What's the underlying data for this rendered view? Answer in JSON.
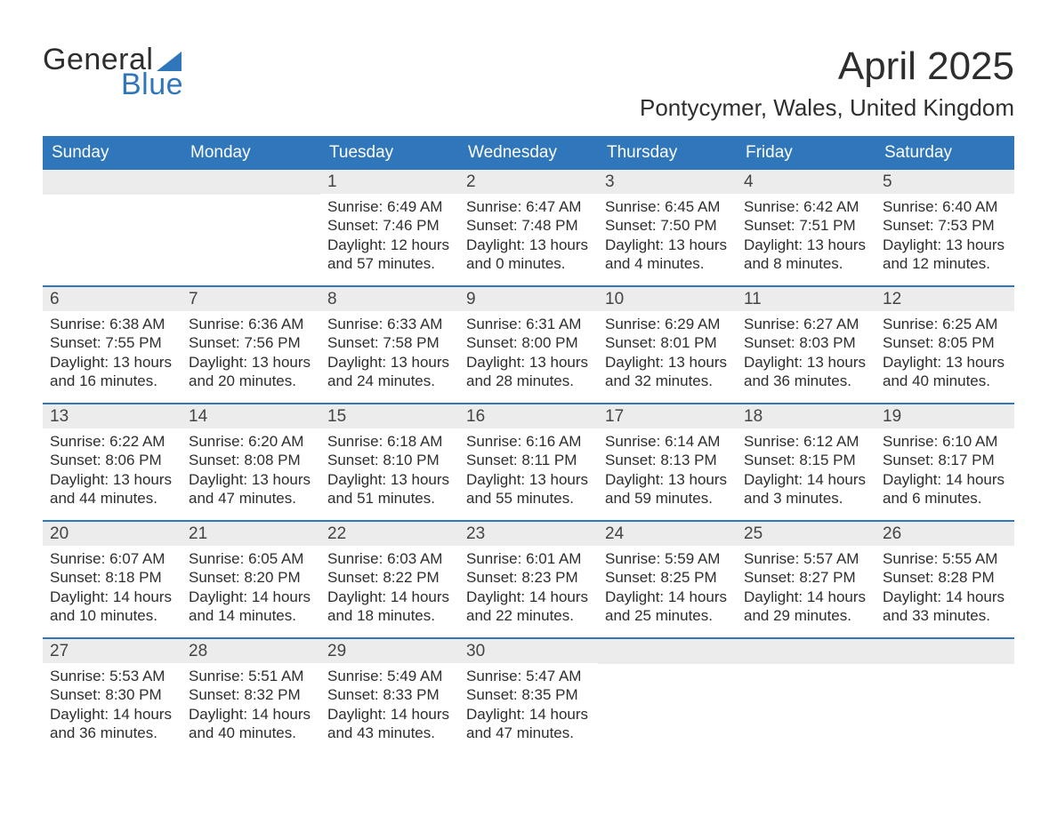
{
  "logo": {
    "text1": "General",
    "text2": "Blue"
  },
  "title": "April 2025",
  "location": "Pontycymer, Wales, United Kingdom",
  "colors": {
    "header_bg": "#2f76bb",
    "header_text": "#ffffff",
    "daynum_bg": "#ececec",
    "week_border": "#2f76bb",
    "body_text": "#2e2e2e",
    "logo_blue": "#2f76bb",
    "page_bg": "#ffffff"
  },
  "day_labels": [
    "Sunday",
    "Monday",
    "Tuesday",
    "Wednesday",
    "Thursday",
    "Friday",
    "Saturday"
  ],
  "weeks": [
    [
      {
        "n": "",
        "sunrise": "",
        "sunset": "",
        "daylight": ""
      },
      {
        "n": "",
        "sunrise": "",
        "sunset": "",
        "daylight": ""
      },
      {
        "n": "1",
        "sunrise": "6:49 AM",
        "sunset": "7:46 PM",
        "daylight": "12 hours and 57 minutes."
      },
      {
        "n": "2",
        "sunrise": "6:47 AM",
        "sunset": "7:48 PM",
        "daylight": "13 hours and 0 minutes."
      },
      {
        "n": "3",
        "sunrise": "6:45 AM",
        "sunset": "7:50 PM",
        "daylight": "13 hours and 4 minutes."
      },
      {
        "n": "4",
        "sunrise": "6:42 AM",
        "sunset": "7:51 PM",
        "daylight": "13 hours and 8 minutes."
      },
      {
        "n": "5",
        "sunrise": "6:40 AM",
        "sunset": "7:53 PM",
        "daylight": "13 hours and 12 minutes."
      }
    ],
    [
      {
        "n": "6",
        "sunrise": "6:38 AM",
        "sunset": "7:55 PM",
        "daylight": "13 hours and 16 minutes."
      },
      {
        "n": "7",
        "sunrise": "6:36 AM",
        "sunset": "7:56 PM",
        "daylight": "13 hours and 20 minutes."
      },
      {
        "n": "8",
        "sunrise": "6:33 AM",
        "sunset": "7:58 PM",
        "daylight": "13 hours and 24 minutes."
      },
      {
        "n": "9",
        "sunrise": "6:31 AM",
        "sunset": "8:00 PM",
        "daylight": "13 hours and 28 minutes."
      },
      {
        "n": "10",
        "sunrise": "6:29 AM",
        "sunset": "8:01 PM",
        "daylight": "13 hours and 32 minutes."
      },
      {
        "n": "11",
        "sunrise": "6:27 AM",
        "sunset": "8:03 PM",
        "daylight": "13 hours and 36 minutes."
      },
      {
        "n": "12",
        "sunrise": "6:25 AM",
        "sunset": "8:05 PM",
        "daylight": "13 hours and 40 minutes."
      }
    ],
    [
      {
        "n": "13",
        "sunrise": "6:22 AM",
        "sunset": "8:06 PM",
        "daylight": "13 hours and 44 minutes."
      },
      {
        "n": "14",
        "sunrise": "6:20 AM",
        "sunset": "8:08 PM",
        "daylight": "13 hours and 47 minutes."
      },
      {
        "n": "15",
        "sunrise": "6:18 AM",
        "sunset": "8:10 PM",
        "daylight": "13 hours and 51 minutes."
      },
      {
        "n": "16",
        "sunrise": "6:16 AM",
        "sunset": "8:11 PM",
        "daylight": "13 hours and 55 minutes."
      },
      {
        "n": "17",
        "sunrise": "6:14 AM",
        "sunset": "8:13 PM",
        "daylight": "13 hours and 59 minutes."
      },
      {
        "n": "18",
        "sunrise": "6:12 AM",
        "sunset": "8:15 PM",
        "daylight": "14 hours and 3 minutes."
      },
      {
        "n": "19",
        "sunrise": "6:10 AM",
        "sunset": "8:17 PM",
        "daylight": "14 hours and 6 minutes."
      }
    ],
    [
      {
        "n": "20",
        "sunrise": "6:07 AM",
        "sunset": "8:18 PM",
        "daylight": "14 hours and 10 minutes."
      },
      {
        "n": "21",
        "sunrise": "6:05 AM",
        "sunset": "8:20 PM",
        "daylight": "14 hours and 14 minutes."
      },
      {
        "n": "22",
        "sunrise": "6:03 AM",
        "sunset": "8:22 PM",
        "daylight": "14 hours and 18 minutes."
      },
      {
        "n": "23",
        "sunrise": "6:01 AM",
        "sunset": "8:23 PM",
        "daylight": "14 hours and 22 minutes."
      },
      {
        "n": "24",
        "sunrise": "5:59 AM",
        "sunset": "8:25 PM",
        "daylight": "14 hours and 25 minutes."
      },
      {
        "n": "25",
        "sunrise": "5:57 AM",
        "sunset": "8:27 PM",
        "daylight": "14 hours and 29 minutes."
      },
      {
        "n": "26",
        "sunrise": "5:55 AM",
        "sunset": "8:28 PM",
        "daylight": "14 hours and 33 minutes."
      }
    ],
    [
      {
        "n": "27",
        "sunrise": "5:53 AM",
        "sunset": "8:30 PM",
        "daylight": "14 hours and 36 minutes."
      },
      {
        "n": "28",
        "sunrise": "5:51 AM",
        "sunset": "8:32 PM",
        "daylight": "14 hours and 40 minutes."
      },
      {
        "n": "29",
        "sunrise": "5:49 AM",
        "sunset": "8:33 PM",
        "daylight": "14 hours and 43 minutes."
      },
      {
        "n": "30",
        "sunrise": "5:47 AM",
        "sunset": "8:35 PM",
        "daylight": "14 hours and 47 minutes."
      },
      {
        "n": "",
        "sunrise": "",
        "sunset": "",
        "daylight": ""
      },
      {
        "n": "",
        "sunrise": "",
        "sunset": "",
        "daylight": ""
      },
      {
        "n": "",
        "sunrise": "",
        "sunset": "",
        "daylight": ""
      }
    ]
  ],
  "labels": {
    "sunrise": "Sunrise: ",
    "sunset": "Sunset: ",
    "daylight": "Daylight: "
  }
}
